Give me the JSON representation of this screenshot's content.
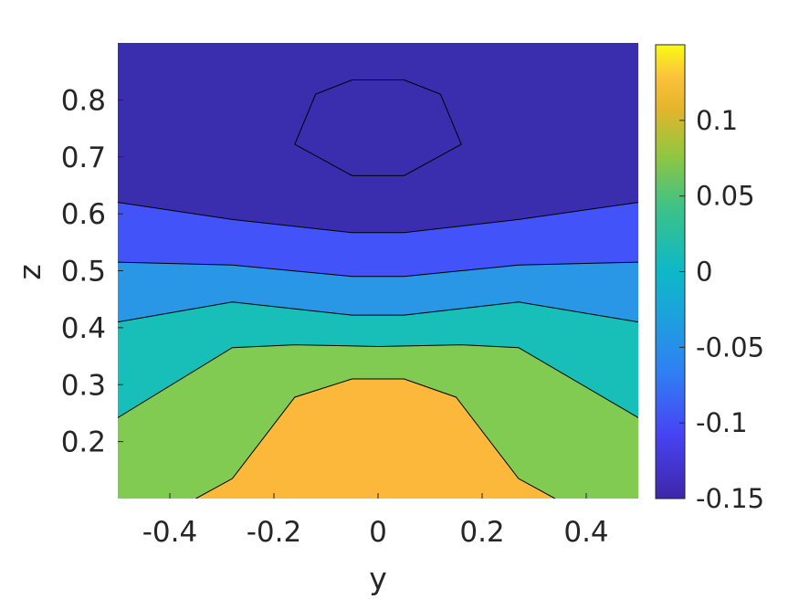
{
  "chart_data": {
    "type": "contour",
    "title": "",
    "xlabel": "y",
    "ylabel": "z",
    "xlim": [
      -0.5,
      0.5
    ],
    "ylim": [
      0.1,
      0.9
    ],
    "x_ticks": [
      -0.4,
      -0.2,
      0,
      0.2,
      0.4
    ],
    "x_tick_labels": [
      "-0.4",
      "-0.2",
      "0",
      "0.2",
      "0.4"
    ],
    "y_ticks": [
      0.2,
      0.3,
      0.4,
      0.5,
      0.6,
      0.7,
      0.8
    ],
    "y_tick_labels": [
      "0.2",
      "0.3",
      "0.4",
      "0.5",
      "0.6",
      "0.7",
      "0.8"
    ],
    "grid": false,
    "colorbar": {
      "limits": [
        -0.15,
        0.15
      ],
      "ticks": [
        -0.15,
        -0.1,
        -0.05,
        0,
        0.05,
        0.1
      ],
      "tick_labels": [
        "-0.15",
        "-0.1",
        "-0.05",
        "0",
        "0.05",
        "0.1"
      ],
      "colormap": "parula"
    },
    "levels": [
      {
        "level": 0.1,
        "fill": "#fbb83a",
        "boundary": [
          [
            -0.35,
            0.1
          ],
          [
            -0.28,
            0.135
          ],
          [
            -0.16,
            0.278
          ],
          [
            -0.05,
            0.31
          ],
          [
            0.05,
            0.31
          ],
          [
            0.15,
            0.278
          ],
          [
            0.27,
            0.135
          ],
          [
            0.34,
            0.1
          ]
        ]
      },
      {
        "level": 0.05,
        "fill": "#82cb53",
        "boundary": [
          [
            -0.5,
            0.242
          ],
          [
            -0.28,
            0.365
          ],
          [
            -0.16,
            0.37
          ],
          [
            0,
            0.367
          ],
          [
            0.16,
            0.37
          ],
          [
            0.27,
            0.365
          ],
          [
            0.5,
            0.242
          ]
        ]
      },
      {
        "level": 0,
        "fill": "#17bfb8",
        "boundary": [
          [
            -0.5,
            0.41
          ],
          [
            -0.28,
            0.445
          ],
          [
            -0.05,
            0.422
          ],
          [
            0.05,
            0.422
          ],
          [
            0.27,
            0.445
          ],
          [
            0.5,
            0.41
          ]
        ]
      },
      {
        "level": -0.05,
        "fill": "#2996e6",
        "boundary": [
          [
            -0.5,
            0.515
          ],
          [
            -0.28,
            0.51
          ],
          [
            -0.05,
            0.49
          ],
          [
            0.05,
            0.49
          ],
          [
            0.27,
            0.51
          ],
          [
            0.5,
            0.515
          ]
        ]
      },
      {
        "level": -0.1,
        "fill": "#4253fa",
        "boundary": [
          [
            -0.5,
            0.62
          ],
          [
            -0.28,
            0.59
          ],
          [
            -0.05,
            0.567
          ],
          [
            0.05,
            0.567
          ],
          [
            0.27,
            0.59
          ],
          [
            0.5,
            0.62
          ]
        ]
      },
      {
        "level": -0.15,
        "fill": "#3a2dae",
        "boundary": []
      }
    ],
    "closed_contours": [
      {
        "level": -0.15,
        "points": [
          [
            -0.16,
            0.722
          ],
          [
            -0.12,
            0.81
          ],
          [
            -0.05,
            0.835
          ],
          [
            0.05,
            0.835
          ],
          [
            0.12,
            0.81
          ],
          [
            0.16,
            0.722
          ],
          [
            0.05,
            0.667
          ],
          [
            -0.05,
            0.667
          ]
        ]
      }
    ]
  }
}
